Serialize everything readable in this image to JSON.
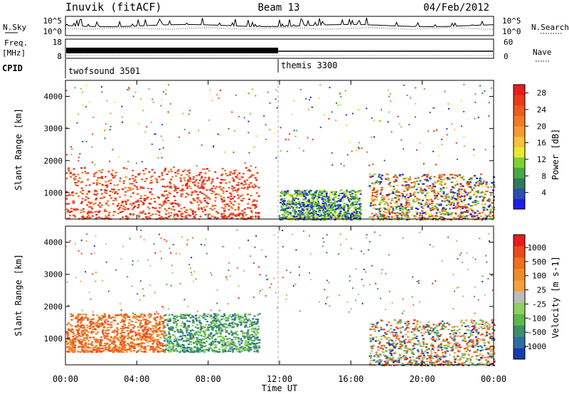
{
  "header": {
    "station": "Inuvik (fitACF)",
    "beam": "Beam 13",
    "date": "04/Feb/2012"
  },
  "noise_panel": {
    "left_label": "N.Sky",
    "right_label": "N.Search",
    "left_ticks": [
      "10^5",
      "10^0"
    ],
    "right_ticks": [
      "10^5",
      "10^0"
    ]
  },
  "freq_panel": {
    "left_label_top": "Freq.",
    "left_label_units": "[MHz]",
    "left_ticks": [
      "18",
      "8"
    ],
    "right_label": "Nave",
    "right_ticks": [
      "60",
      "0"
    ]
  },
  "cpid_panel": {
    "label": "CPID",
    "modes": [
      {
        "name": "twofsound 3501",
        "start": "00:00"
      },
      {
        "name": "themis 3300",
        "start": "12:00"
      }
    ]
  },
  "chart_data": [
    {
      "type": "heatmap",
      "xlabel": "",
      "ylabel": "Slant Range [km]",
      "x_ticks": [
        "00:00",
        "04:00",
        "08:00",
        "12:00",
        "16:00",
        "20:00",
        "00:00"
      ],
      "y_ticks": [
        1000,
        2000,
        3000,
        4000
      ],
      "ylim": [
        180,
        4500
      ],
      "colorbar": {
        "label": "Power [dB]",
        "ticks": [
          4,
          8,
          12,
          16,
          20,
          24,
          28
        ],
        "range": [
          0,
          30
        ],
        "colors": [
          "#1e1ee6",
          "#2a4fb0",
          "#2e7a5a",
          "#4aa843",
          "#7cd233",
          "#e8e832",
          "#f5c23a",
          "#f59a32",
          "#f07a28",
          "#ee5a22",
          "#ea3a1c",
          "#e61e1e"
        ]
      },
      "features": [
        {
          "x_range": [
            "00:00",
            "10:50"
          ],
          "slant_range_km": [
            200,
            1800
          ],
          "level": "high"
        },
        {
          "x_range": [
            "12:00",
            "16:30"
          ],
          "slant_range_km": [
            180,
            1100
          ],
          "level": "low"
        },
        {
          "x_range": [
            "17:00",
            "24:00"
          ],
          "slant_range_km": [
            180,
            1600
          ],
          "level": "mixed"
        }
      ]
    },
    {
      "type": "heatmap",
      "xlabel": "Time UT",
      "ylabel": "Slant Range [km]",
      "x_ticks": [
        "00:00",
        "04:00",
        "08:00",
        "12:00",
        "16:00",
        "20:00",
        "00:00"
      ],
      "y_ticks": [
        1000,
        2000,
        3000,
        4000
      ],
      "ylim": [
        180,
        4500
      ],
      "colorbar": {
        "label": "Velocity [m s-1]",
        "ticks": [
          1000,
          500,
          100,
          25,
          -25,
          -100,
          -500,
          -1000
        ],
        "colors": [
          "#1a3ab0",
          "#2f6fa0",
          "#3d8f6c",
          "#5db84a",
          "#8fd060",
          "#bcbcbc",
          "#f5a040",
          "#f08c2a",
          "#ee7020",
          "#ea4a1c",
          "#e61e1e"
        ]
      },
      "features": [
        {
          "x_range": [
            "00:00",
            "05:30"
          ],
          "slant_range_km": [
            600,
            1800
          ],
          "level": "away"
        },
        {
          "x_range": [
            "05:30",
            "10:50"
          ],
          "slant_range_km": [
            600,
            1800
          ],
          "level": "toward"
        },
        {
          "x_range": [
            "17:00",
            "24:00"
          ],
          "slant_range_km": [
            180,
            1600
          ],
          "level": "mixed"
        }
      ]
    }
  ]
}
